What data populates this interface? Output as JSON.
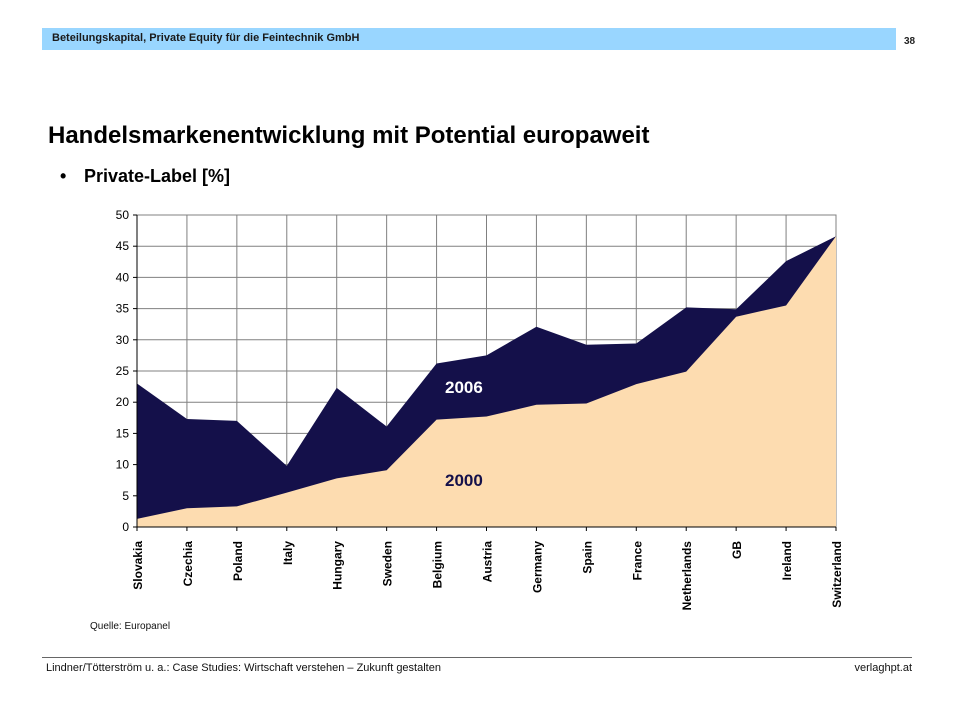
{
  "header": {
    "title": "Beteilungskapital, Private Equity für die Feintechnik GmbH",
    "page_number": "38"
  },
  "slide": {
    "title": "Handelsmarkenentwicklung mit Potential europaweit",
    "bullet": "Private-Label [%]",
    "source": "Quelle: Europanel"
  },
  "footer": {
    "left": "Lindner/Tötterström u. a.: Case Studies: Wirtschaft verstehen – Zukunft gestalten",
    "right": "verlaghpt.at"
  },
  "colors": {
    "series_2006": "#14104a",
    "series_2000": "#fddcb0",
    "header_bar": "#99d6ff"
  },
  "chart_data": {
    "type": "area",
    "categories": [
      "Slovakia",
      "Czechia",
      "Poland",
      "Italy",
      "Hungary",
      "Sweden",
      "Belgium",
      "Austria",
      "Germany",
      "Spain",
      "France",
      "Netherlands",
      "GB",
      "Ireland",
      "Switzerland"
    ],
    "series": [
      {
        "name": "2006",
        "values": [
          23,
          17.3,
          17,
          9.8,
          22.3,
          16.1,
          26.2,
          27.5,
          32.1,
          29.2,
          29.4,
          35.2,
          34.9,
          42.6,
          46.6
        ]
      },
      {
        "name": "2000",
        "values": [
          1.3,
          3,
          3.3,
          5.5,
          7.8,
          9.1,
          17.2,
          17.7,
          19.6,
          19.8,
          22.9,
          24.9,
          33.7,
          35.5,
          46.6
        ]
      }
    ],
    "ylim": [
      0,
      50
    ],
    "yticks": [
      0,
      5,
      10,
      15,
      20,
      25,
      30,
      35,
      40,
      45,
      50
    ],
    "grid": true,
    "stacked": false
  }
}
